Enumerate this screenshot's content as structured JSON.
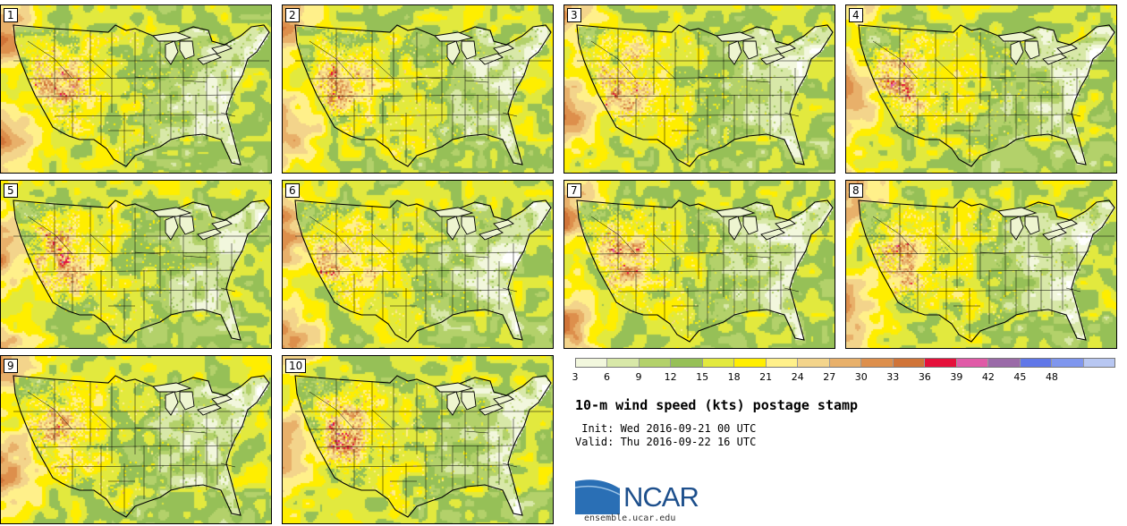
{
  "product": {
    "title": "10-m wind speed (kts) postage stamp",
    "init": " Init: Wed 2016-09-21 00 UTC",
    "valid": "Valid: Thu 2016-09-22 16 UTC",
    "logo_text": "NCAR",
    "site": "ensemble.ucar.edu"
  },
  "members": [
    "1",
    "2",
    "3",
    "4",
    "5",
    "6",
    "7",
    "8",
    "9",
    "10"
  ],
  "colorbar": {
    "levels": [
      "3",
      "6",
      "9",
      "12",
      "15",
      "18",
      "21",
      "24",
      "27",
      "30",
      "33",
      "36",
      "39",
      "42",
      "45",
      "48"
    ],
    "colors": [
      "#f2f7dd",
      "#d8e8a8",
      "#b3d16a",
      "#96c057",
      "#e2e93e",
      "#ffee00",
      "#fff08a",
      "#f3d48b",
      "#e8b06a",
      "#dd8f4c",
      "#d07438",
      "#e5103a",
      "#e05aa7",
      "#9a6aa8",
      "#6077e8",
      "#7f96ee",
      "#b8c7f2"
    ]
  },
  "map": {
    "region": "CONUS",
    "boundaries": "state and country borders",
    "colors": {
      "border": "#000000",
      "land_base": "#f5f9e3",
      "calm": "#ffffff"
    }
  }
}
